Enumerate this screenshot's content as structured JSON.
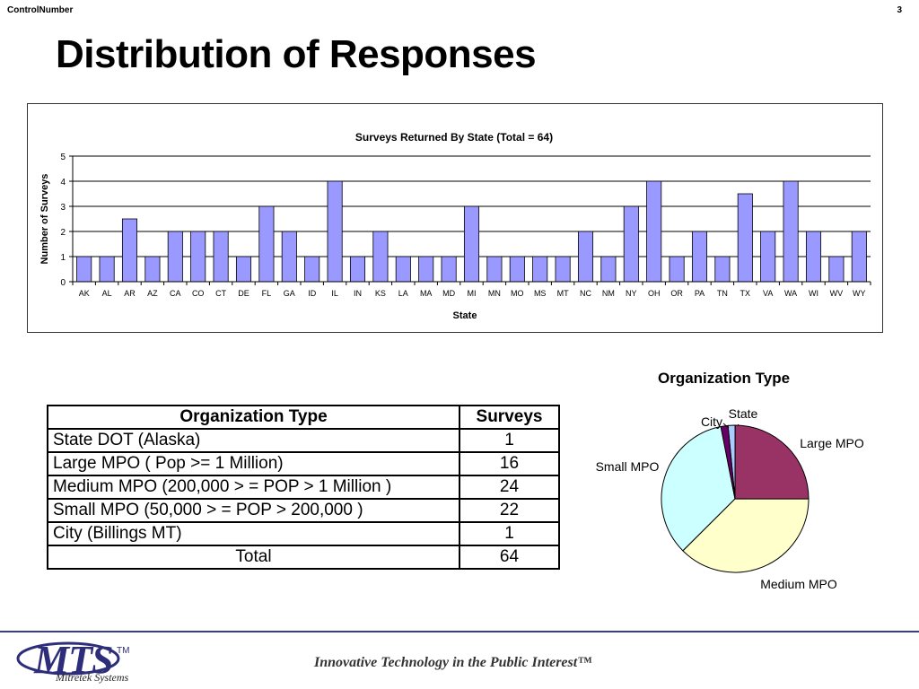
{
  "header": {
    "left": "ControlNumber",
    "page_number": "3"
  },
  "slide_title": "Distribution of Responses",
  "chart_data": [
    {
      "type": "bar",
      "title": "Surveys Returned By State (Total = 64)",
      "xlabel": "State",
      "ylabel": "Number of Surveys",
      "ylim": [
        0,
        5
      ],
      "yticks": [
        0,
        1,
        2,
        3,
        4,
        5
      ],
      "grid": true,
      "bar_color": "#9999ff",
      "categories": [
        "AK",
        "AL",
        "AR",
        "AZ",
        "CA",
        "CO",
        "CT",
        "DE",
        "FL",
        "GA",
        "ID",
        "IL",
        "IN",
        "KS",
        "LA",
        "MA",
        "MD",
        "MI",
        "MN",
        "MO",
        "MS",
        "MT",
        "NC",
        "NM",
        "NY",
        "OH",
        "OR",
        "PA",
        "TN",
        "TX",
        "VA",
        "WA",
        "WI",
        "WV",
        "WY"
      ],
      "values": [
        1,
        1,
        2.5,
        1,
        2,
        2,
        2,
        1,
        3,
        2,
        1,
        4,
        1,
        2,
        1,
        1,
        1,
        3,
        1,
        1,
        1,
        1,
        2,
        1,
        3,
        4,
        1,
        2,
        1,
        3.5,
        2,
        4,
        2,
        1,
        2
      ]
    },
    {
      "type": "pie",
      "title": "Organization Type",
      "slices": [
        {
          "label": "State",
          "value": 1,
          "color": "#aaccff"
        },
        {
          "label": "Large MPO",
          "value": 16,
          "color": "#993366"
        },
        {
          "label": "Medium MPO",
          "value": 24,
          "color": "#ffffcc"
        },
        {
          "label": "Small MPO",
          "value": 22,
          "color": "#ccffff"
        },
        {
          "label": "City",
          "value": 1,
          "color": "#660066"
        }
      ]
    }
  ],
  "table": {
    "headers": [
      "Organization Type",
      "Surveys"
    ],
    "rows": [
      {
        "type": "State DOT (Alaska)",
        "surveys": "1"
      },
      {
        "type": "Large MPO ( Pop >= 1 Million)",
        "surveys": "16"
      },
      {
        "type": "Medium MPO (200,000 > = POP > 1 Million )",
        "surveys": "24"
      },
      {
        "type": "Small MPO (50,000 > = POP > 200,000 )",
        "surveys": "22"
      },
      {
        "type": "City (Billings MT)",
        "surveys": "1"
      }
    ],
    "total_label": "Total",
    "total_value": "64"
  },
  "footer": {
    "logo_text": "MTS",
    "logo_tm": "TM",
    "logo_sub": "Mitretek Systems",
    "tagline": "Innovative Technology in the Public Interest™"
  }
}
